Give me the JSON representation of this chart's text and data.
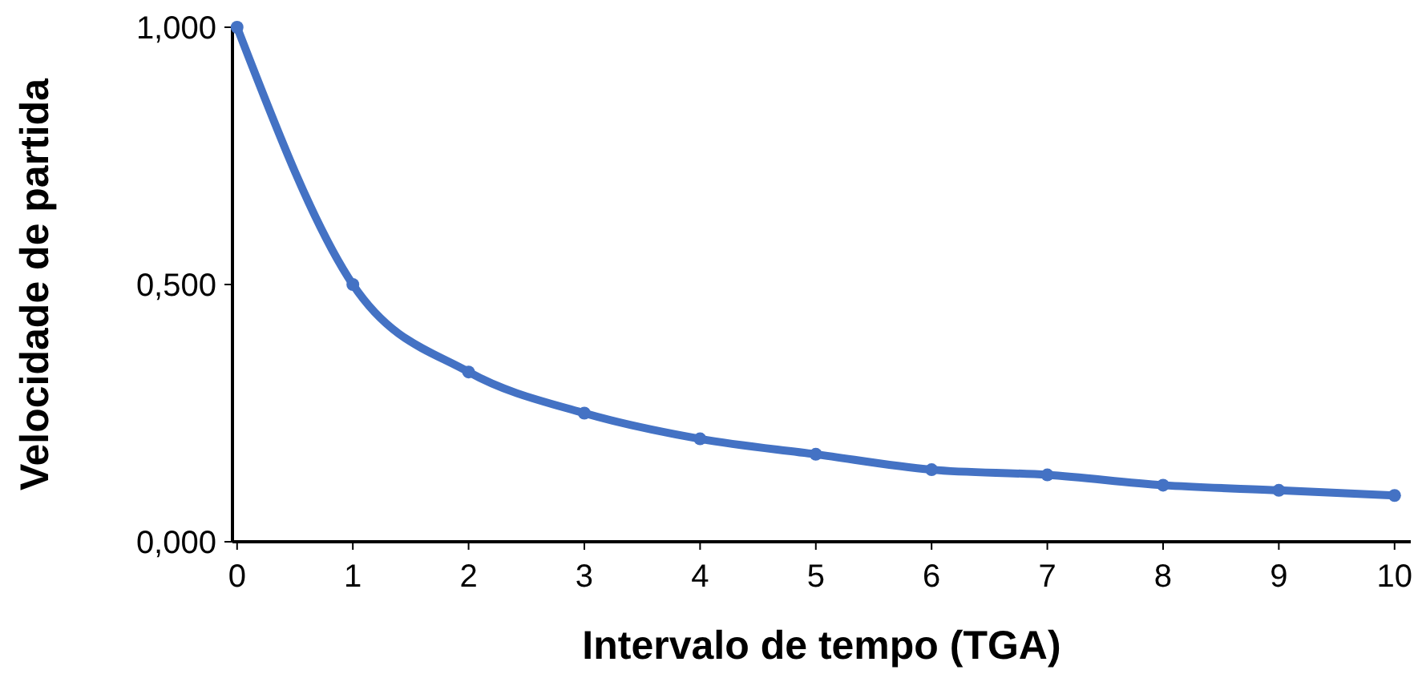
{
  "chart_data": {
    "type": "line",
    "xlabel": "Intervalo de tempo (TGA)",
    "ylabel": "Velocidade de partida",
    "x": [
      0,
      1,
      2,
      3,
      4,
      5,
      6,
      7,
      8,
      9,
      10
    ],
    "series": [
      {
        "color": "#4472c4",
        "values": [
          1.0,
          0.5,
          0.33,
          0.25,
          0.2,
          0.17,
          0.14,
          0.13,
          0.11,
          0.1,
          0.09
        ]
      }
    ],
    "xlim": [
      -0.04,
      10.14
    ],
    "xticks": [
      0,
      1,
      2,
      3,
      4,
      5,
      6,
      7,
      8,
      9,
      10
    ],
    "ylim": [
      0,
      1
    ],
    "yticks": [
      {
        "value": 0,
        "label": "0,000"
      },
      {
        "value": 0.5,
        "label": "0,500"
      },
      {
        "value": 1,
        "label": "1,000"
      }
    ],
    "grid": false,
    "marker": "circle",
    "line_style": "solid"
  }
}
